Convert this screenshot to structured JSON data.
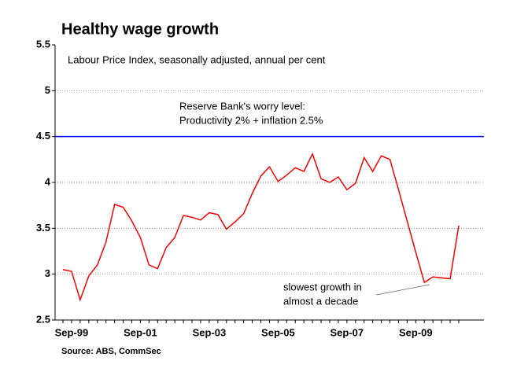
{
  "chart_data": {
    "type": "line",
    "title": "Healthy wage growth",
    "subtitle": "Labour Price Index, seasonally adjusted, annual per cent",
    "source": "Source: ABS, CommSec",
    "categories": [
      null,
      "Sep-99",
      null,
      null,
      null,
      null,
      null,
      null,
      null,
      "Sep-01",
      null,
      null,
      null,
      null,
      null,
      null,
      null,
      "Sep-03",
      null,
      null,
      null,
      null,
      null,
      null,
      null,
      "Sep-05",
      null,
      null,
      null,
      null,
      null,
      null,
      null,
      "Sep-07",
      null,
      null,
      null,
      null,
      null,
      null,
      null,
      "Sep-09",
      null,
      null,
      null,
      null,
      null
    ],
    "series": [
      {
        "name": "Labour Price Index",
        "color": "#ff0000",
        "values": [
          3.05,
          3.03,
          2.72,
          2.98,
          3.1,
          3.35,
          3.76,
          3.73,
          3.58,
          3.4,
          3.1,
          3.06,
          3.29,
          3.4,
          3.64,
          3.62,
          3.59,
          3.67,
          3.65,
          3.49,
          3.57,
          3.66,
          3.88,
          4.07,
          4.17,
          4.01,
          4.08,
          4.16,
          4.12,
          4.31,
          4.04,
          4.0,
          4.06,
          3.92,
          3.99,
          4.27,
          4.12,
          4.29,
          4.25,
          3.92,
          3.58,
          3.24,
          2.91,
          2.97,
          2.96,
          2.95,
          3.53
        ]
      }
    ],
    "reference_line": {
      "value": 4.5,
      "color": "#0000ff",
      "label": [
        "Reserve Bank's worry level:",
        "Productivity 2% + inflation 2.5%"
      ]
    },
    "annotation": [
      "slowest growth in",
      "almost a decade"
    ],
    "ylim": [
      2.5,
      5.5
    ],
    "yticks": [
      2.5,
      3,
      3.5,
      4,
      4.5,
      5,
      5.5
    ],
    "grid": true
  }
}
